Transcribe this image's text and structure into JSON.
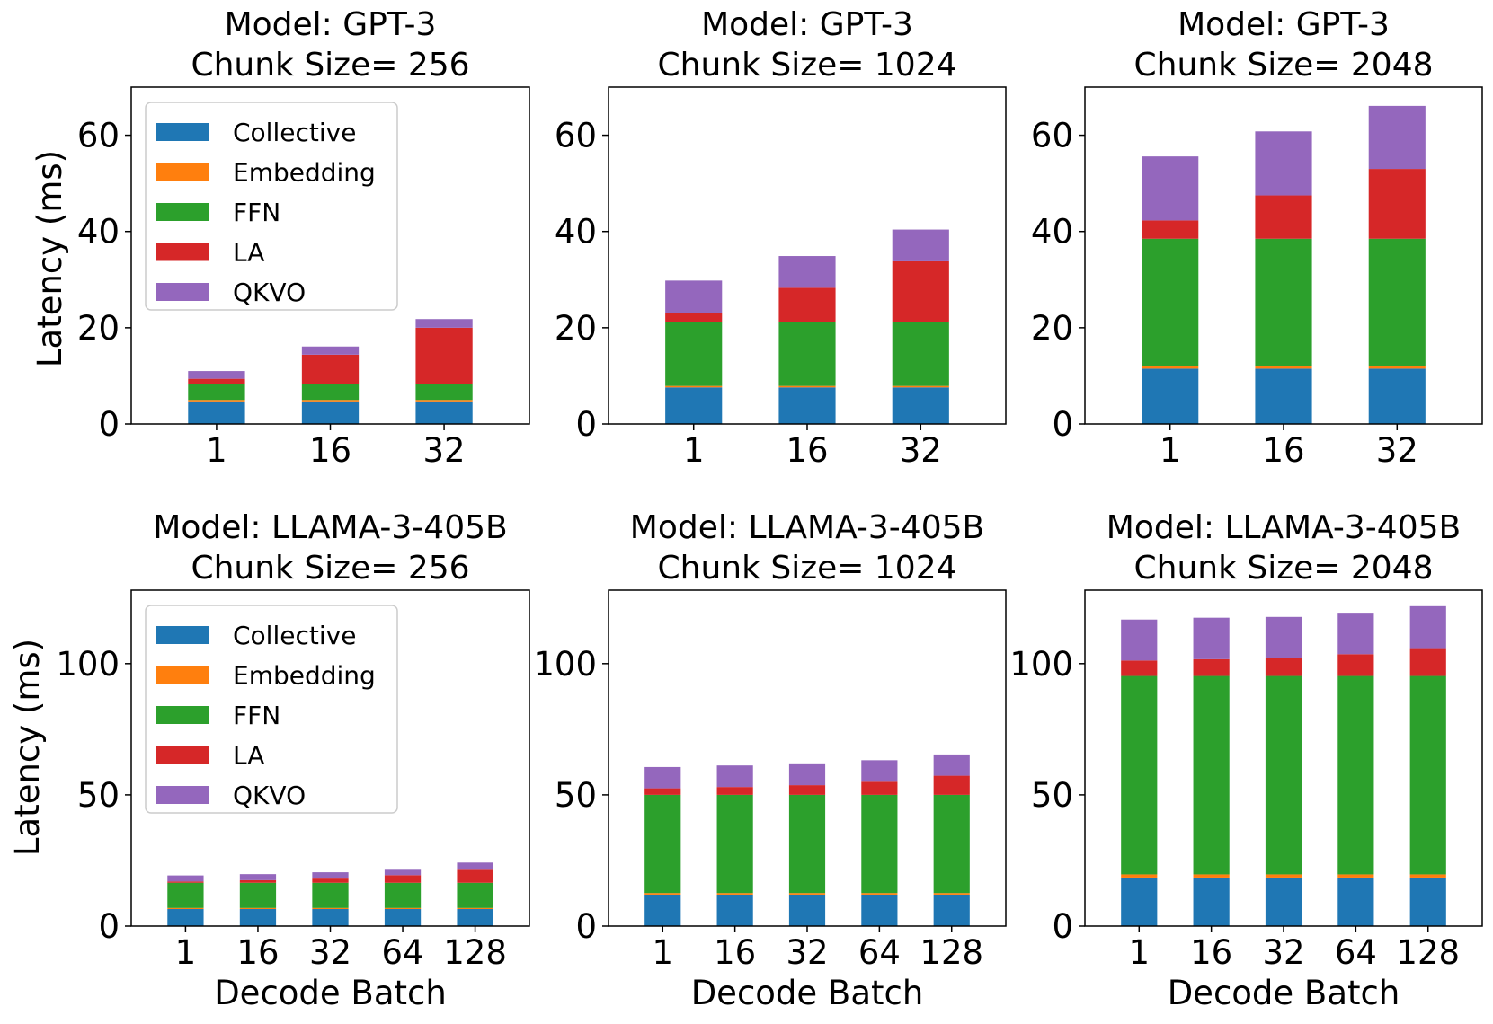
{
  "figure": {
    "ylabel": "Latency (ms)",
    "xlabel": "Decode Batch"
  },
  "legend": {
    "collective": "Collective",
    "embedding": "Embedding",
    "ffn": "FFN",
    "la": "LA",
    "qkvo": "QKVO"
  },
  "colors": {
    "collective": "#1f77b4",
    "embedding": "#ff7f0e",
    "ffn": "#2ca02c",
    "la": "#d62728",
    "qkvo": "#9467bd"
  },
  "chart_data": [
    {
      "type": "bar",
      "stacked": true,
      "title_line1": "Model: GPT-3",
      "title_line2": "Chunk Size= 256",
      "xlabel": "",
      "ylabel": "Latency (ms)",
      "categories": [
        "1",
        "16",
        "32"
      ],
      "ylim": [
        0,
        70
      ],
      "yticks": [
        0,
        20,
        40,
        60
      ],
      "legend_position": "upper-left",
      "series": [
        {
          "name": "Collective",
          "values": [
            4.7,
            4.7,
            4.7
          ]
        },
        {
          "name": "Embedding",
          "values": [
            0.3,
            0.3,
            0.3
          ]
        },
        {
          "name": "FFN",
          "values": [
            3.4,
            3.4,
            3.4
          ]
        },
        {
          "name": "LA",
          "values": [
            1.0,
            6.0,
            11.6
          ]
        },
        {
          "name": "QKVO",
          "values": [
            1.6,
            1.7,
            1.8
          ]
        }
      ]
    },
    {
      "type": "bar",
      "stacked": true,
      "title_line1": "Model: GPT-3",
      "title_line2": "Chunk Size= 1024",
      "xlabel": "",
      "ylabel": "",
      "categories": [
        "1",
        "16",
        "32"
      ],
      "ylim": [
        0,
        70
      ],
      "yticks": [
        0,
        20,
        40,
        60
      ],
      "series": [
        {
          "name": "Collective",
          "values": [
            7.6,
            7.6,
            7.6
          ]
        },
        {
          "name": "Embedding",
          "values": [
            0.3,
            0.3,
            0.3
          ]
        },
        {
          "name": "FFN",
          "values": [
            13.3,
            13.3,
            13.3
          ]
        },
        {
          "name": "LA",
          "values": [
            1.9,
            7.1,
            12.6
          ]
        },
        {
          "name": "QKVO",
          "values": [
            6.7,
            6.6,
            6.6
          ]
        }
      ]
    },
    {
      "type": "bar",
      "stacked": true,
      "title_line1": "Model: GPT-3",
      "title_line2": "Chunk Size= 2048",
      "xlabel": "",
      "ylabel": "",
      "categories": [
        "1",
        "16",
        "32"
      ],
      "ylim": [
        0,
        70
      ],
      "yticks": [
        0,
        20,
        40,
        60
      ],
      "series": [
        {
          "name": "Collective",
          "values": [
            11.5,
            11.5,
            11.5
          ]
        },
        {
          "name": "Embedding",
          "values": [
            0.5,
            0.5,
            0.5
          ]
        },
        {
          "name": "FFN",
          "values": [
            26.5,
            26.5,
            26.5
          ]
        },
        {
          "name": "LA",
          "values": [
            3.8,
            9.0,
            14.5
          ]
        },
        {
          "name": "QKVO",
          "values": [
            13.3,
            13.3,
            13.1
          ]
        }
      ]
    },
    {
      "type": "bar",
      "stacked": true,
      "title_line1": "Model: LLAMA-3-405B",
      "title_line2": "Chunk Size= 256",
      "xlabel": "Decode Batch",
      "ylabel": "Latency (ms)",
      "categories": [
        "1",
        "16",
        "32",
        "64",
        "128"
      ],
      "ylim": [
        0,
        128
      ],
      "yticks": [
        0,
        50,
        100
      ],
      "legend_position": "upper-left",
      "series": [
        {
          "name": "Collective",
          "values": [
            6.5,
            6.5,
            6.5,
            6.5,
            6.5
          ]
        },
        {
          "name": "Embedding",
          "values": [
            0.4,
            0.4,
            0.4,
            0.4,
            0.4
          ]
        },
        {
          "name": "FFN",
          "values": [
            9.6,
            9.6,
            9.6,
            9.6,
            9.6
          ]
        },
        {
          "name": "LA",
          "values": [
            0.5,
            1.0,
            1.6,
            2.9,
            5.3
          ]
        },
        {
          "name": "QKVO",
          "values": [
            2.3,
            2.3,
            2.4,
            2.4,
            2.4
          ]
        }
      ]
    },
    {
      "type": "bar",
      "stacked": true,
      "title_line1": "Model: LLAMA-3-405B",
      "title_line2": "Chunk Size= 1024",
      "xlabel": "Decode Batch",
      "ylabel": "",
      "categories": [
        "1",
        "16",
        "32",
        "64",
        "128"
      ],
      "ylim": [
        0,
        128
      ],
      "yticks": [
        0,
        50,
        100
      ],
      "series": [
        {
          "name": "Collective",
          "values": [
            12.0,
            12.0,
            12.0,
            12.0,
            12.0
          ]
        },
        {
          "name": "Embedding",
          "values": [
            0.6,
            0.6,
            0.6,
            0.6,
            0.6
          ]
        },
        {
          "name": "FFN",
          "values": [
            37.4,
            37.4,
            37.4,
            37.4,
            37.4
          ]
        },
        {
          "name": "LA",
          "values": [
            2.5,
            3.0,
            3.7,
            5.0,
            7.3
          ]
        },
        {
          "name": "QKVO",
          "values": [
            8.1,
            8.2,
            8.3,
            8.2,
            8.1
          ]
        }
      ]
    },
    {
      "type": "bar",
      "stacked": true,
      "title_line1": "Model: LLAMA-3-405B",
      "title_line2": "Chunk Size= 2048",
      "xlabel": "Decode Batch",
      "ylabel": "",
      "categories": [
        "1",
        "16",
        "32",
        "64",
        "128"
      ],
      "ylim": [
        0,
        128
      ],
      "yticks": [
        0,
        50,
        100
      ],
      "series": [
        {
          "name": "Collective",
          "values": [
            18.5,
            18.5,
            18.5,
            18.5,
            18.5
          ]
        },
        {
          "name": "Embedding",
          "values": [
            1.2,
            1.2,
            1.2,
            1.2,
            1.2
          ]
        },
        {
          "name": "FFN",
          "values": [
            75.6,
            75.6,
            75.6,
            75.6,
            75.6
          ]
        },
        {
          "name": "LA",
          "values": [
            5.9,
            6.4,
            7.0,
            8.3,
            10.6
          ]
        },
        {
          "name": "QKVO",
          "values": [
            15.6,
            15.8,
            15.5,
            15.8,
            16.0
          ]
        }
      ]
    }
  ]
}
